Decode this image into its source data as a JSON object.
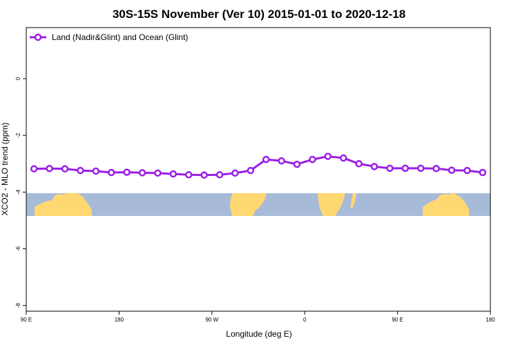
{
  "chart_data": {
    "type": "line",
    "title": "30S-15S November (Ver 10)   2015-01-01 to 2020-12-18",
    "xlabel": "Longitude (deg E)",
    "ylabel": "XCO2 - MLO trend (ppm)",
    "xlim": [
      0,
      300
    ],
    "ylim": [
      -8.2,
      1.8
    ],
    "x_ticks": [
      {
        "value": 0,
        "label": "90 E"
      },
      {
        "value": 60,
        "label": "180"
      },
      {
        "value": 120,
        "label": "90 W"
      },
      {
        "value": 180,
        "label": "0"
      },
      {
        "value": 240,
        "label": "90 E"
      },
      {
        "value": 300,
        "label": "180"
      }
    ],
    "y_ticks": [
      {
        "value": 0,
        "label": "0"
      },
      {
        "value": -2,
        "label": "-2"
      },
      {
        "value": -4,
        "label": "-4"
      },
      {
        "value": -6,
        "label": "-6"
      },
      {
        "value": -8,
        "label": "-8"
      }
    ],
    "grid": false,
    "legend_position": "top-left",
    "series": [
      {
        "name": "Land (Nadir&Glint) and Ocean (Glint)",
        "color": "#9a1ee6",
        "marker": "open-circle",
        "x": [
          5,
          15,
          25,
          35,
          45,
          55,
          65,
          75,
          85,
          95,
          105,
          115,
          125,
          135,
          145,
          155,
          165,
          175,
          185,
          195,
          205,
          215,
          225,
          235,
          245,
          255,
          265,
          275,
          285,
          295
        ],
        "y": [
          -3.18,
          -3.17,
          -3.18,
          -3.24,
          -3.26,
          -3.31,
          -3.3,
          -3.32,
          -3.33,
          -3.36,
          -3.39,
          -3.4,
          -3.39,
          -3.33,
          -3.24,
          -2.85,
          -2.9,
          -3.02,
          -2.85,
          -2.74,
          -2.8,
          -3.0,
          -3.1,
          -3.16,
          -3.16,
          -3.16,
          -3.17,
          -3.23,
          -3.24,
          -3.31
        ]
      }
    ],
    "map_strip": {
      "ocean_color": "#a7bbd9",
      "land_color": "#ffd872"
    }
  }
}
